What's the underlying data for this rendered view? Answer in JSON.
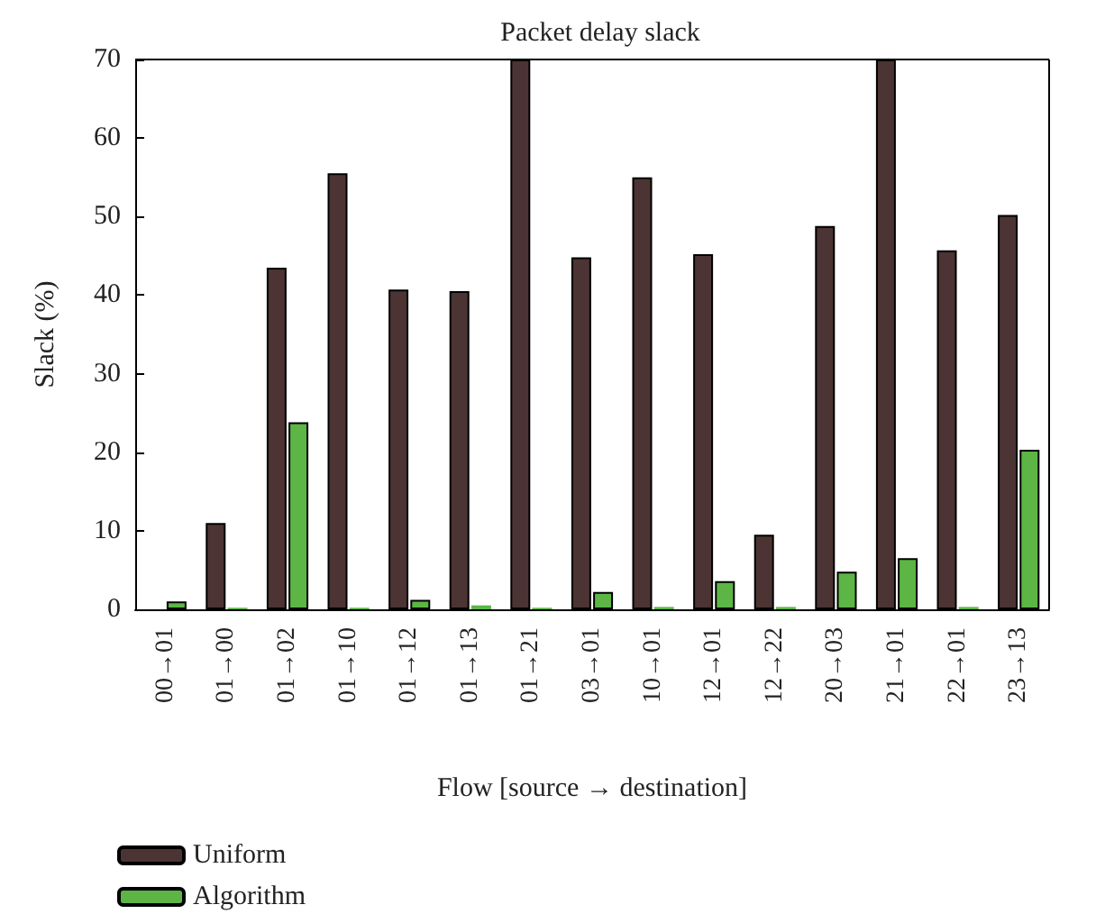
{
  "chart_data": {
    "type": "bar",
    "title": "Packet delay slack",
    "xlabel": "Flow [source → destination]",
    "ylabel": "Slack (%)",
    "categories": [
      "00→01",
      "01→00",
      "01→02",
      "01→10",
      "01→12",
      "01→13",
      "01→21",
      "03→01",
      "10→01",
      "12→01",
      "12→22",
      "20→03",
      "21→01",
      "22→01",
      "23→13"
    ],
    "series": [
      {
        "name": "Uniform",
        "color": "#4b3433",
        "values": [
          0,
          11,
          43.5,
          55.5,
          40.7,
          40.5,
          70,
          44.8,
          55,
          45.2,
          9.5,
          48.8,
          70,
          45.7,
          50.2
        ]
      },
      {
        "name": "Algorithm",
        "color": "#5cb545",
        "values": [
          1,
          0.2,
          23.8,
          0.2,
          1.2,
          0.5,
          0.2,
          2.2,
          0.3,
          3.6,
          0.3,
          4.8,
          6.5,
          0.3,
          20.3
        ]
      }
    ],
    "ylim": [
      0,
      70
    ],
    "yticks": [
      0,
      10,
      20,
      30,
      40,
      50,
      60,
      70
    ],
    "grid": false,
    "legend": "bottom"
  }
}
